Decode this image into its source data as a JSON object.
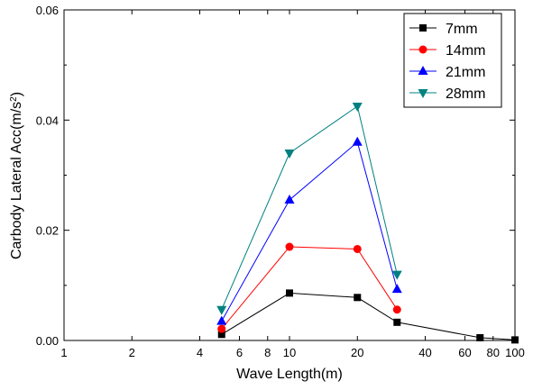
{
  "chart_data": {
    "type": "line",
    "xlabel": "Wave Length(m)",
    "ylabel_main": "Carbody Lateral Acc(m/s",
    "ylabel_sup": "2",
    "ylabel_end": ")",
    "x_scale": "log",
    "xlim": [
      1,
      100
    ],
    "ylim": [
      0,
      0.06
    ],
    "x_ticks": [
      1,
      2,
      4,
      6,
      8,
      10,
      20,
      40,
      60,
      80,
      100
    ],
    "x_tick_labels": [
      "1",
      "2",
      "4",
      "6",
      "8",
      "10",
      "20",
      "40",
      "60",
      "80",
      "100"
    ],
    "y_ticks": [
      0,
      0.02,
      0.04,
      0.06
    ],
    "y_tick_labels": [
      "0.00",
      "0.02",
      "0.04",
      "0.06"
    ],
    "legend_position": "top-right",
    "grid": false,
    "series": [
      {
        "name": "7mm",
        "color": "#000000",
        "marker": "square",
        "points": [
          [
            5,
            0.0011
          ],
          [
            10,
            0.0086
          ],
          [
            20,
            0.0078
          ],
          [
            30,
            0.0033
          ],
          [
            70,
            0.0005
          ],
          [
            100,
            0.0001
          ]
        ]
      },
      {
        "name": "14mm",
        "color": "#ff0000",
        "marker": "circle",
        "points": [
          [
            5,
            0.0021
          ],
          [
            10,
            0.017
          ],
          [
            20,
            0.0166
          ],
          [
            30,
            0.0056
          ]
        ]
      },
      {
        "name": "21mm",
        "color": "#0000ff",
        "marker": "triangle-up",
        "points": [
          [
            5,
            0.0035
          ],
          [
            10,
            0.0255
          ],
          [
            20,
            0.036
          ],
          [
            30,
            0.0093
          ]
        ]
      },
      {
        "name": "28mm",
        "color": "#008080",
        "marker": "triangle-down",
        "points": [
          [
            5,
            0.0056
          ],
          [
            10,
            0.034
          ],
          [
            20,
            0.0425
          ],
          [
            30,
            0.012
          ]
        ]
      }
    ]
  }
}
